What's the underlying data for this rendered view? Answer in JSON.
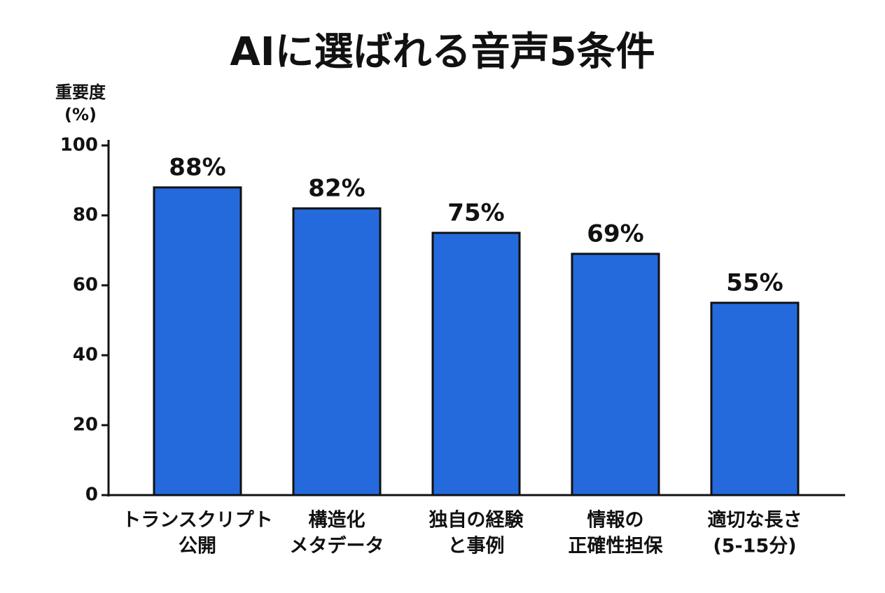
{
  "chart_data": {
    "type": "bar",
    "title": "AIに選ばれる音声5条件",
    "y_label": [
      "重要度",
      "(%)"
    ],
    "categories": [
      [
        "トランスクリプト",
        "公開"
      ],
      [
        "構造化",
        "メタデータ"
      ],
      [
        "独自の経験",
        "と事例"
      ],
      [
        "情報の",
        "正確性担保"
      ],
      [
        "適切な長さ",
        "(5-15分)"
      ]
    ],
    "values": [
      88,
      82,
      75,
      69,
      55
    ],
    "value_labels": [
      "88%",
      "82%",
      "75%",
      "69%",
      "55%"
    ],
    "color": "#246add",
    "ylim": [
      0,
      100
    ],
    "yticks": [
      0,
      20,
      40,
      60,
      80,
      100
    ],
    "grid": false
  }
}
